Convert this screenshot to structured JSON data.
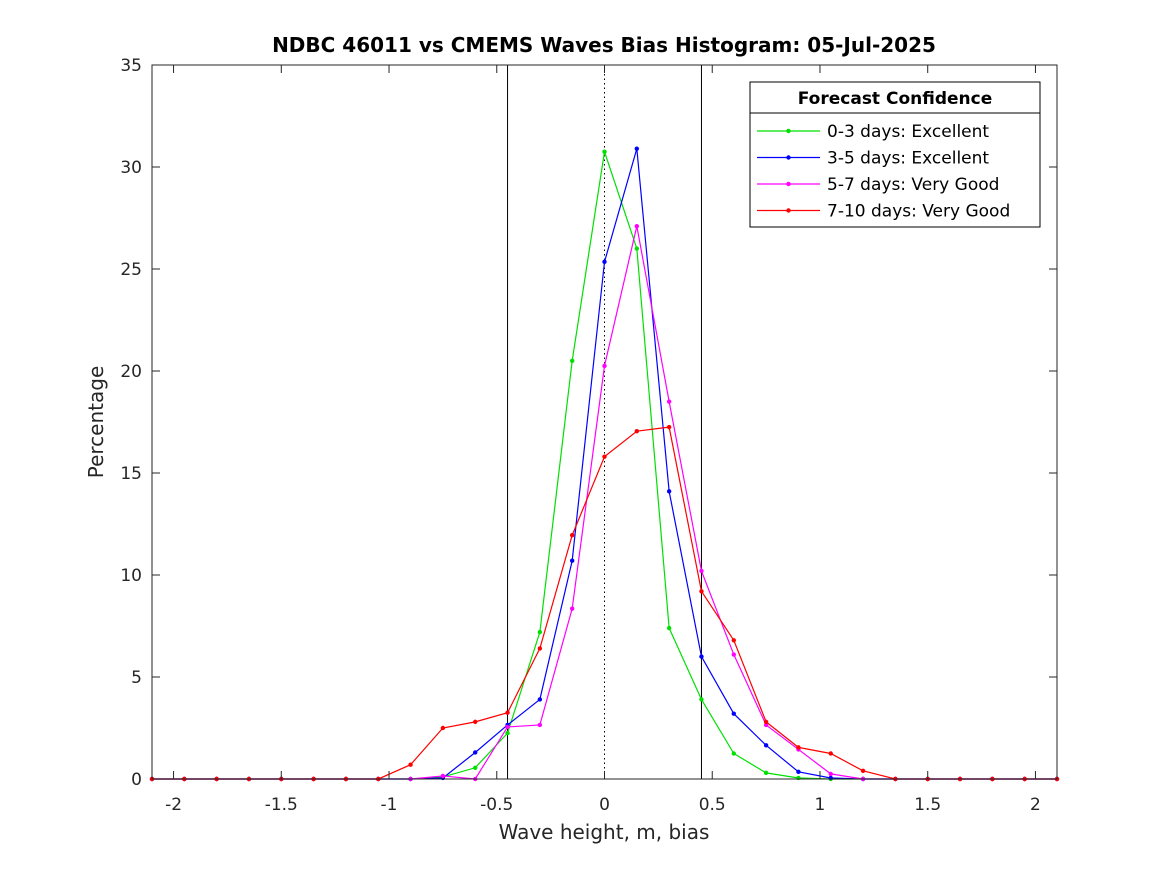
{
  "chart_data": {
    "type": "line",
    "title": "NDBC 46011 vs CMEMS Waves Bias Histogram: 05-Jul-2025",
    "xlabel": "Wave height, m, bias",
    "ylabel": "Percentage",
    "xlim": [
      -2.1,
      2.1
    ],
    "ylim": [
      0,
      35
    ],
    "xticks": [
      -2,
      -1.5,
      -1,
      -0.5,
      0,
      0.5,
      1,
      1.5,
      2
    ],
    "xtick_labels": [
      "-2",
      "-1.5",
      "-1",
      "-0.5",
      "0",
      "0.5",
      "1",
      "1.5",
      "2"
    ],
    "yticks": [
      0,
      5,
      10,
      15,
      20,
      25,
      30,
      35
    ],
    "ytick_labels": [
      "0",
      "5",
      "10",
      "15",
      "20",
      "25",
      "30",
      "35"
    ],
    "grid": false,
    "reference_lines": [
      {
        "x": -0.45,
        "style": "solid",
        "color": "#000000"
      },
      {
        "x": 0,
        "style": "dotted",
        "color": "#000000"
      },
      {
        "x": 0.45,
        "style": "solid",
        "color": "#000000"
      }
    ],
    "legend": {
      "title": "Forecast Confidence",
      "placement": "top-right"
    },
    "x": [
      -2.1,
      -1.95,
      -1.8,
      -1.65,
      -1.5,
      -1.35,
      -1.2,
      -1.05,
      -0.9,
      -0.75,
      -0.6,
      -0.45,
      -0.3,
      -0.15,
      0,
      0.15,
      0.3,
      0.45,
      0.6,
      0.75,
      0.9,
      1.05,
      1.2,
      1.35,
      1.5,
      1.65,
      1.8,
      1.95,
      2.1
    ],
    "series": [
      {
        "name": "0-3 days: Excellent",
        "color": "#00e000",
        "values": [
          0,
          0,
          0,
          0,
          0,
          0,
          0,
          0,
          0,
          0.1,
          0.55,
          2.25,
          7.2,
          20.5,
          30.75,
          26.0,
          7.4,
          3.9,
          1.25,
          0.3,
          0.05,
          0,
          0,
          0,
          0,
          0,
          0,
          0,
          0
        ]
      },
      {
        "name": "3-5 days: Excellent",
        "color": "#0000ff",
        "values": [
          0,
          0,
          0,
          0,
          0,
          0,
          0,
          0,
          0,
          0.05,
          1.3,
          2.65,
          3.9,
          10.7,
          25.35,
          30.9,
          14.1,
          6.0,
          3.2,
          1.65,
          0.35,
          0.05,
          0,
          0,
          0,
          0,
          0,
          0,
          0
        ]
      },
      {
        "name": "5-7 days: Very Good",
        "color": "#ff00ff",
        "values": [
          0,
          0,
          0,
          0,
          0,
          0,
          0,
          0,
          0,
          0.15,
          0,
          2.55,
          2.65,
          8.35,
          20.25,
          27.1,
          18.5,
          10.2,
          6.1,
          2.65,
          1.45,
          0.25,
          0,
          0,
          0,
          0,
          0,
          0,
          0
        ]
      },
      {
        "name": "7-10 days: Very Good",
        "color": "#ff0000",
        "values": [
          0,
          0,
          0,
          0,
          0,
          0,
          0,
          0,
          0.7,
          2.5,
          2.8,
          3.25,
          6.4,
          11.95,
          15.8,
          17.05,
          17.25,
          9.2,
          6.8,
          2.8,
          1.55,
          1.25,
          0.4,
          0,
          0,
          0,
          0,
          0,
          0
        ]
      }
    ]
  }
}
